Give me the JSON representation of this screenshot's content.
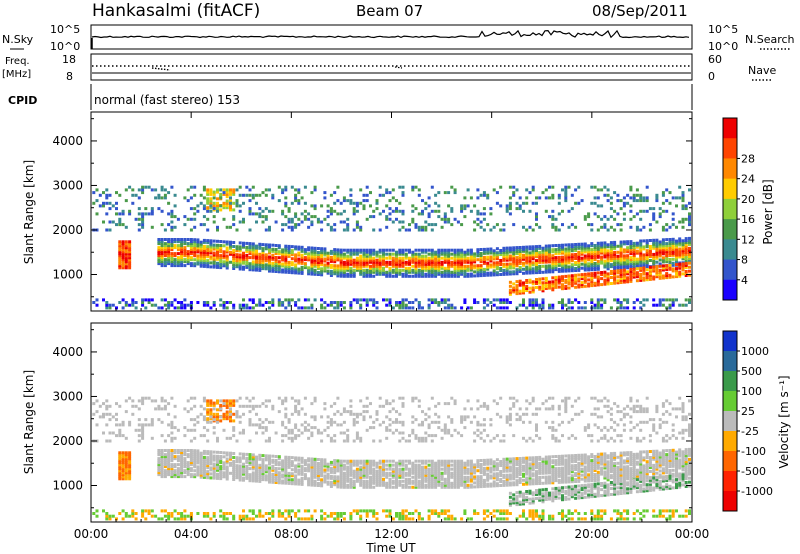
{
  "header": {
    "station": "Hankasalmi (fitACF)",
    "beam": "Beam 07",
    "date": "08/Sep/2011"
  },
  "status_panels": {
    "nsky_label": "N.Sky",
    "nsky_ticks": [
      "10^5",
      "10^0"
    ],
    "nsearch_label": "N.Search",
    "nsearch_ticks": [
      "10^5",
      "10^0"
    ],
    "freq_label": "Freq.",
    "freq_unit": "[MHz]",
    "freq_ticks": [
      "18",
      "8"
    ],
    "nave_label": "Nave",
    "nave_ticks": [
      "60",
      "0"
    ],
    "cpid_label": "CPID",
    "cpid_value": "normal (fast stereo) 153"
  },
  "chart_data": [
    {
      "type": "heatmap",
      "name": "power",
      "xlabel": "Time UT",
      "ylabel": "Slant Range [km]",
      "x_ticks": [
        "00:00",
        "04:00",
        "08:00",
        "12:00",
        "16:00",
        "20:00",
        "00:00"
      ],
      "xlim_hours": [
        0,
        24
      ],
      "ylim_km": [
        180,
        4650
      ],
      "y_ticks": [
        1000,
        2000,
        3000,
        4000
      ],
      "colorbar": {
        "label": "Power [dB]",
        "ticks": [
          "4",
          "8",
          "12",
          "16",
          "20",
          "24",
          "28"
        ],
        "colors": [
          "#1a00ff",
          "#3355cc",
          "#3a8a90",
          "#4a9a4a",
          "#8fcf3a",
          "#ffcc00",
          "#ff8800",
          "#ff4400",
          "#ee0000"
        ]
      },
      "features": [
        {
          "region": "main band",
          "time_hours": [
            2.5,
            24
          ],
          "range_km": [
            1000,
            1700
          ],
          "level": "high"
        },
        {
          "region": "lower band",
          "time_hours": [
            16.5,
            24
          ],
          "range_km": [
            600,
            1100
          ],
          "level": "high"
        },
        {
          "region": "upper scatter",
          "time_hours": [
            0,
            24
          ],
          "range_km": [
            2000,
            3000
          ],
          "level": "low"
        }
      ]
    },
    {
      "type": "heatmap",
      "name": "velocity",
      "xlabel": "Time UT",
      "ylabel": "Slant Range [km]",
      "x_ticks": [
        "00:00",
        "04:00",
        "08:00",
        "12:00",
        "16:00",
        "20:00",
        "00:00"
      ],
      "xlim_hours": [
        0,
        24
      ],
      "ylim_km": [
        180,
        4650
      ],
      "y_ticks": [
        1000,
        2000,
        3000,
        4000
      ],
      "colorbar": {
        "label": "Velocity [m s⁻¹]",
        "ticks": [
          "1000",
          "500",
          "100",
          "25",
          "-25",
          "-100",
          "-500",
          "-1000"
        ],
        "colors": [
          "#1133cc",
          "#2a6a9a",
          "#3a9a4a",
          "#66cc33",
          "#bbbbbb",
          "#ffaa00",
          "#ff6600",
          "#ff2200",
          "#ee0000"
        ]
      }
    }
  ]
}
